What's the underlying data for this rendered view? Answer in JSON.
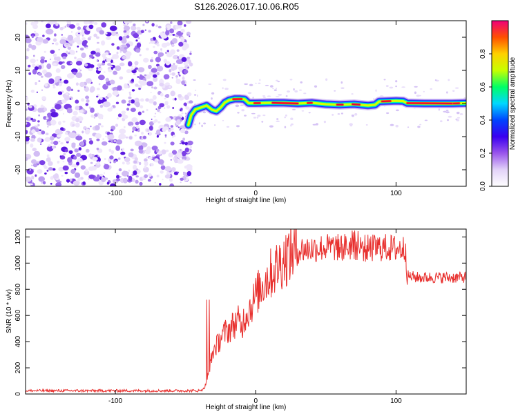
{
  "title": "S126.2026.017.10.06.R05",
  "colors": {
    "snr_line": "#e8302e",
    "axis": "#000000",
    "background": "#ffffff",
    "noise_light": "#dccaf6",
    "noise_dark": "#5a18e0"
  },
  "chart_data": [
    {
      "type": "heatmap",
      "name": "spectrogram",
      "xlabel": "Height of straight line (km)",
      "ylabel": "Frequency (Hz)",
      "xlim": [
        -164,
        150
      ],
      "ylim": [
        -25,
        25
      ],
      "x_ticks": [
        -100,
        0,
        100
      ],
      "y_ticks": [
        -20,
        -10,
        0,
        10,
        20
      ],
      "colorbar": {
        "label": "Normalized spectral amplitude",
        "range": [
          0,
          1
        ],
        "ticks": [
          "0.0",
          "0.2",
          "0.4",
          "0.6",
          "0.8"
        ],
        "stops": [
          "#ffffff",
          "#e2d2f8",
          "#9a55ec",
          "#3a00f0",
          "#0044ff",
          "#00d8ff",
          "#00ff66",
          "#c8ff00",
          "#ffd000",
          "#ff5000",
          "#f0007a"
        ]
      },
      "noise_region_x": [
        -164,
        -46
      ],
      "signal_track": [
        [
          -48,
          -6.5
        ],
        [
          -46,
          -3.5
        ],
        [
          -43,
          -1.8
        ],
        [
          -39,
          -1.2
        ],
        [
          -35,
          -0.6
        ],
        [
          -31,
          -1.9
        ],
        [
          -28,
          -2.3
        ],
        [
          -25,
          -1.2
        ],
        [
          -22,
          0.3
        ],
        [
          -19,
          1.0
        ],
        [
          -15,
          1.4
        ],
        [
          -11,
          1.4
        ],
        [
          -8,
          1.3
        ],
        [
          -5,
          0.1
        ],
        [
          0,
          0.1
        ],
        [
          10,
          0.2
        ],
        [
          20,
          0.2
        ],
        [
          30,
          0.0
        ],
        [
          40,
          0.2
        ],
        [
          50,
          -0.2
        ],
        [
          60,
          -0.4
        ],
        [
          70,
          -0.2
        ],
        [
          80,
          -0.6
        ],
        [
          85,
          -0.4
        ],
        [
          88,
          0.6
        ],
        [
          95,
          0.7
        ],
        [
          100,
          0.8
        ],
        [
          105,
          0.7
        ],
        [
          108,
          0.1
        ],
        [
          120,
          0.0
        ],
        [
          130,
          0.0
        ],
        [
          140,
          0.0
        ],
        [
          150,
          0.1
        ]
      ]
    },
    {
      "type": "line",
      "name": "snr",
      "xlabel": "Height of straight line (km)",
      "ylabel": "SNR (10 * v/v)",
      "xlim": [
        -164,
        150
      ],
      "ylim": [
        0,
        1260
      ],
      "x_ticks": [
        -100,
        0,
        100
      ],
      "y_ticks": [
        0,
        200,
        400,
        600,
        800,
        1000,
        1200
      ],
      "series": [
        {
          "name": "SNR",
          "x": [
            -164,
            -150,
            -130,
            -110,
            -90,
            -70,
            -50,
            -40,
            -37,
            -35,
            -33,
            -31,
            -29,
            -27,
            -25,
            -22,
            -18,
            -15,
            -12,
            -10,
            -8,
            -5,
            -2,
            0,
            5,
            10,
            15,
            20,
            25,
            30,
            40,
            50,
            60,
            70,
            80,
            90,
            100,
            105,
            107,
            108,
            109,
            115,
            125,
            135,
            145,
            150
          ],
          "y": [
            25,
            25,
            25,
            25,
            25,
            25,
            25,
            25,
            40,
            90,
            190,
            300,
            360,
            380,
            430,
            470,
            500,
            540,
            560,
            510,
            590,
            640,
            700,
            750,
            840,
            910,
            970,
            1030,
            1080,
            1100,
            1110,
            1120,
            1120,
            1130,
            1110,
            1120,
            1110,
            1110,
            1110,
            900,
            900,
            890,
            890,
            890,
            890,
            895
          ]
        }
      ]
    }
  ]
}
